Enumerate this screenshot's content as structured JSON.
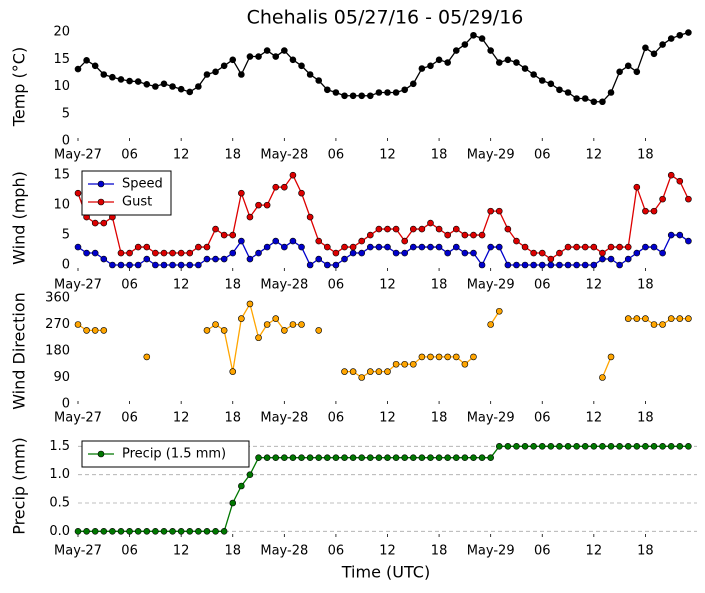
{
  "chart_data": [
    {
      "type": "line",
      "title": "Chehalis 05/27/16 - 05/29/16",
      "ylabel": "Temp (°C)",
      "x": [
        0,
        1,
        2,
        3,
        4,
        5,
        6,
        7,
        8,
        9,
        10,
        11,
        12,
        13,
        14,
        15,
        16,
        17,
        18,
        19,
        20,
        21,
        22,
        23,
        24,
        25,
        26,
        27,
        28,
        29,
        30,
        31,
        32,
        33,
        34,
        35,
        36,
        37,
        38,
        39,
        40,
        41,
        42,
        43,
        44,
        45,
        46,
        47,
        48,
        49,
        50,
        51,
        52,
        53,
        54,
        55,
        56,
        57,
        58,
        59,
        60,
        61,
        62,
        63,
        64,
        65,
        66,
        67,
        68,
        69,
        70,
        71
      ],
      "xlim": [
        0,
        72
      ],
      "xticks": [
        {
          "value": 0,
          "label": "May-27"
        },
        {
          "value": 6,
          "label": "06"
        },
        {
          "value": 12,
          "label": "12"
        },
        {
          "value": 18,
          "label": "18"
        },
        {
          "value": 24,
          "label": "May-28"
        },
        {
          "value": 30,
          "label": "06"
        },
        {
          "value": 36,
          "label": "12"
        },
        {
          "value": 42,
          "label": "18"
        },
        {
          "value": 48,
          "label": "May-29"
        },
        {
          "value": 54,
          "label": "06"
        },
        {
          "value": 60,
          "label": "12"
        },
        {
          "value": 66,
          "label": "18"
        }
      ],
      "ylim": [
        0,
        20
      ],
      "yticks": [
        0,
        5,
        10,
        15,
        20
      ],
      "grid": false,
      "series": [
        {
          "color": "#000000",
          "values": [
            13.2,
            14.8,
            13.8,
            12.2,
            11.7,
            11.3,
            11.0,
            10.9,
            10.4,
            10.0,
            10.5,
            10.0,
            9.5,
            9.0,
            10.0,
            12.2,
            12.7,
            13.8,
            14.9,
            12.2,
            15.5,
            15.5,
            16.6,
            15.5,
            16.6,
            14.9,
            13.8,
            12.2,
            11.1,
            9.4,
            8.9,
            8.3,
            8.3,
            8.3,
            8.3,
            8.9,
            8.9,
            8.9,
            9.4,
            10.5,
            13.3,
            13.8,
            14.9,
            14.4,
            16.6,
            17.7,
            19.4,
            18.8,
            16.6,
            14.4,
            14.9,
            14.4,
            13.3,
            12.2,
            11.1,
            10.5,
            9.4,
            8.9,
            7.8,
            7.8,
            7.2,
            7.2,
            8.9,
            12.7,
            13.8,
            12.7,
            17.1,
            16.0,
            17.7,
            18.8,
            19.4,
            19.9
          ]
        }
      ]
    },
    {
      "type": "line",
      "ylabel": "Wind (mph)",
      "x": [
        0,
        1,
        2,
        3,
        4,
        5,
        6,
        7,
        8,
        9,
        10,
        11,
        12,
        13,
        14,
        15,
        16,
        17,
        18,
        19,
        20,
        21,
        22,
        23,
        24,
        25,
        26,
        27,
        28,
        29,
        30,
        31,
        32,
        33,
        34,
        35,
        36,
        37,
        38,
        39,
        40,
        41,
        42,
        43,
        44,
        45,
        46,
        47,
        48,
        49,
        50,
        51,
        52,
        53,
        54,
        55,
        56,
        57,
        58,
        59,
        60,
        61,
        62,
        63,
        64,
        65,
        66,
        67,
        68,
        69,
        70,
        71
      ],
      "xlim": [
        0,
        72
      ],
      "xticks": [
        {
          "value": 0,
          "label": "May-27"
        },
        {
          "value": 6,
          "label": "06"
        },
        {
          "value": 12,
          "label": "12"
        },
        {
          "value": 18,
          "label": "18"
        },
        {
          "value": 24,
          "label": "May-28"
        },
        {
          "value": 30,
          "label": "06"
        },
        {
          "value": 36,
          "label": "12"
        },
        {
          "value": 42,
          "label": "18"
        },
        {
          "value": 48,
          "label": "May-29"
        },
        {
          "value": 54,
          "label": "06"
        },
        {
          "value": 60,
          "label": "12"
        },
        {
          "value": 66,
          "label": "18"
        }
      ],
      "ylim": [
        -1,
        16.7
      ],
      "yticks": [
        0,
        5,
        10,
        15
      ],
      "grid": false,
      "legend": "upper left",
      "series": [
        {
          "name": "Speed",
          "color": "#0000cc",
          "values": [
            3,
            2,
            2,
            1,
            0,
            0,
            0,
            0,
            1,
            0,
            0,
            0,
            0,
            0,
            0,
            1,
            1,
            1,
            2,
            4,
            1,
            2,
            3,
            4,
            3,
            4,
            3,
            0,
            1,
            0,
            0,
            1,
            2,
            2,
            3,
            3,
            3,
            2,
            2,
            3,
            3,
            3,
            3,
            2,
            3,
            2,
            2,
            0,
            3,
            3,
            0,
            0,
            0,
            0,
            0,
            0,
            0,
            0,
            0,
            0,
            0,
            1,
            1,
            0,
            1,
            2,
            3,
            3,
            2,
            5,
            5,
            4
          ]
        },
        {
          "name": "Gust",
          "color": "#dd0000",
          "values": [
            12,
            8,
            7,
            7,
            8,
            2,
            2,
            3,
            3,
            2,
            2,
            2,
            2,
            2,
            3,
            3,
            6,
            5,
            5,
            12,
            8,
            10,
            10,
            13,
            13,
            15,
            12,
            8,
            4,
            3,
            2,
            3,
            3,
            4,
            5,
            6,
            6,
            6,
            4,
            6,
            6,
            7,
            6,
            5,
            6,
            5,
            5,
            5,
            9,
            9,
            6,
            4,
            3,
            2,
            2,
            1,
            2,
            3,
            3,
            3,
            3,
            2,
            3,
            3,
            3,
            13,
            9,
            9,
            11,
            15,
            14,
            11
          ]
        }
      ]
    },
    {
      "type": "line",
      "ylabel": "Wind Direction",
      "x": [
        0,
        1,
        2,
        3,
        4,
        5,
        6,
        7,
        8,
        9,
        10,
        11,
        12,
        13,
        14,
        15,
        16,
        17,
        18,
        19,
        20,
        21,
        22,
        23,
        24,
        25,
        26,
        27,
        28,
        29,
        30,
        31,
        32,
        33,
        34,
        35,
        36,
        37,
        38,
        39,
        40,
        41,
        42,
        43,
        44,
        45,
        46,
        47,
        48,
        49,
        50,
        51,
        52,
        53,
        54,
        55,
        56,
        57,
        58,
        59,
        60,
        61,
        62,
        63,
        64,
        65,
        66,
        67,
        68,
        69,
        70,
        71
      ],
      "xlim": [
        0,
        72
      ],
      "xticks": [
        {
          "value": 0,
          "label": "May-27"
        },
        {
          "value": 6,
          "label": "06"
        },
        {
          "value": 12,
          "label": "12"
        },
        {
          "value": 18,
          "label": "18"
        },
        {
          "value": 24,
          "label": "May-28"
        },
        {
          "value": 30,
          "label": "06"
        },
        {
          "value": 36,
          "label": "12"
        },
        {
          "value": 42,
          "label": "18"
        },
        {
          "value": 48,
          "label": "May-29"
        },
        {
          "value": 54,
          "label": "06"
        },
        {
          "value": 60,
          "label": "12"
        },
        {
          "value": 66,
          "label": "18"
        }
      ],
      "ylim": [
        0,
        360
      ],
      "yticks": [
        0,
        90,
        180,
        270,
        360
      ],
      "grid": false,
      "series": [
        {
          "color": "#ffa500",
          "values": [
            270,
            250,
            250,
            250,
            null,
            null,
            null,
            null,
            160,
            null,
            null,
            null,
            null,
            null,
            null,
            250,
            270,
            250,
            110,
            290,
            340,
            225,
            270,
            290,
            250,
            270,
            270,
            null,
            250,
            null,
            null,
            110,
            110,
            90,
            110,
            110,
            110,
            135,
            135,
            135,
            160,
            160,
            160,
            160,
            160,
            135,
            160,
            null,
            270,
            315,
            null,
            null,
            null,
            null,
            null,
            null,
            null,
            null,
            null,
            null,
            null,
            90,
            160,
            null,
            290,
            290,
            290,
            270,
            270,
            290,
            290,
            290
          ]
        }
      ]
    },
    {
      "type": "line",
      "ylabel": "Precip (mm)",
      "xlabel": "Time (UTC)",
      "x": [
        0,
        1,
        2,
        3,
        4,
        5,
        6,
        7,
        8,
        9,
        10,
        11,
        12,
        13,
        14,
        15,
        16,
        17,
        18,
        19,
        20,
        21,
        22,
        23,
        24,
        25,
        26,
        27,
        28,
        29,
        30,
        31,
        32,
        33,
        34,
        35,
        36,
        37,
        38,
        39,
        40,
        41,
        42,
        43,
        44,
        45,
        46,
        47,
        48,
        49,
        50,
        51,
        52,
        53,
        54,
        55,
        56,
        57,
        58,
        59,
        60,
        61,
        62,
        63,
        64,
        65,
        66,
        67,
        68,
        69,
        70,
        71
      ],
      "xlim": [
        0,
        72
      ],
      "xticks": [
        {
          "value": 0,
          "label": "May-27"
        },
        {
          "value": 6,
          "label": "06"
        },
        {
          "value": 12,
          "label": "12"
        },
        {
          "value": 18,
          "label": "18"
        },
        {
          "value": 24,
          "label": "May-28"
        },
        {
          "value": 30,
          "label": "06"
        },
        {
          "value": 36,
          "label": "12"
        },
        {
          "value": 42,
          "label": "18"
        },
        {
          "value": 48,
          "label": "May-29"
        },
        {
          "value": 54,
          "label": "06"
        },
        {
          "value": 60,
          "label": "12"
        },
        {
          "value": 66,
          "label": "18"
        }
      ],
      "ylim": [
        -0.1,
        1.7
      ],
      "yticks": [
        {
          "value": 0,
          "label": "0.0"
        },
        {
          "value": 0.5,
          "label": "0.5"
        },
        {
          "value": 1,
          "label": "1.0"
        },
        {
          "value": 1.5,
          "label": "1.5"
        }
      ],
      "grid": true,
      "legend": "upper left",
      "series": [
        {
          "name": "Precip (1.5 mm)",
          "color": "#007700",
          "values": [
            0,
            0,
            0,
            0,
            0,
            0,
            0,
            0,
            0,
            0,
            0,
            0,
            0,
            0,
            0,
            0,
            0,
            0,
            0.5,
            0.8,
            1.0,
            1.3,
            1.3,
            1.3,
            1.3,
            1.3,
            1.3,
            1.3,
            1.3,
            1.3,
            1.3,
            1.3,
            1.3,
            1.3,
            1.3,
            1.3,
            1.3,
            1.3,
            1.3,
            1.3,
            1.3,
            1.3,
            1.3,
            1.3,
            1.3,
            1.3,
            1.3,
            1.3,
            1.3,
            1.5,
            1.5,
            1.5,
            1.5,
            1.5,
            1.5,
            1.5,
            1.5,
            1.5,
            1.5,
            1.5,
            1.5,
            1.5,
            1.5,
            1.5,
            1.5,
            1.5,
            1.5,
            1.5,
            1.5,
            1.5,
            1.5,
            1.5
          ]
        }
      ]
    }
  ]
}
